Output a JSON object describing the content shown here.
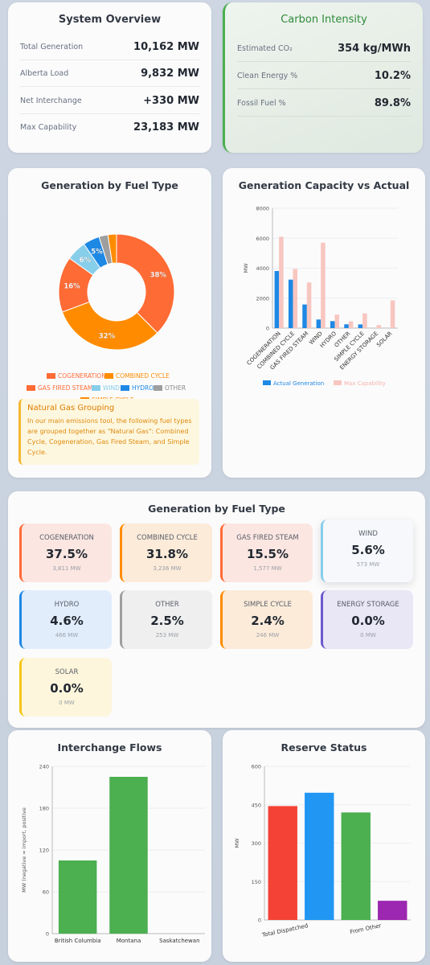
{
  "system_overview": {
    "title": "System Overview",
    "rows": [
      {
        "label": "Total Generation",
        "value": "10,162 MW"
      },
      {
        "label": "Alberta Load",
        "value": "9,832 MW"
      },
      {
        "label": "Net Interchange",
        "value": "+330 MW"
      },
      {
        "label": "Max Capability",
        "value": "23,183 MW"
      }
    ]
  },
  "carbon": {
    "title": "Carbon Intensity",
    "title_color": "#2e8b3a",
    "rows": [
      {
        "label": "Estimated CO₂",
        "value": "354 kg/MWh"
      },
      {
        "label": "Clean Energy %",
        "value": "10.2%"
      },
      {
        "label": "Fossil Fuel %",
        "value": "89.8%"
      }
    ]
  },
  "pie_chart": {
    "title": "Generation by Fuel Type",
    "legend": [
      {
        "label": "COGENERATION",
        "color": "#ff6b35"
      },
      {
        "label": "COMBINED CYCLE",
        "color": "#ff8c00"
      },
      {
        "label": "GAS FIRED STEAM",
        "color": "#ff6b35"
      },
      {
        "label": "WIND",
        "color": "#87ceeb"
      },
      {
        "label": "HYDRO",
        "color": "#1e88e5"
      },
      {
        "label": "OTHER",
        "color": "#9e9e9e"
      },
      {
        "label": "SIMPLE CYCLE",
        "color": "#ff8c00"
      }
    ],
    "natural_gas": {
      "title": "Natural Gas Grouping",
      "text": "In our main emissions tool, the following fuel types are grouped together as \"Natural Gas\": Combined Cycle, Cogeneration, Gas Fired Steam, and Simple Cycle."
    }
  },
  "capacity_chart": {
    "title": "Generation Capacity vs Actual"
  },
  "fuel_tiles": {
    "title": "Generation by Fuel Type",
    "tiles": [
      {
        "name": "COGENERATION",
        "pct": "37.5%",
        "mw": "3,811 MW",
        "bg": "#fbe6e1",
        "border": "#ff6b35"
      },
      {
        "name": "COMBINED CYCLE",
        "pct": "31.8%",
        "mw": "3,236 MW",
        "bg": "#fcebd9",
        "border": "#ff8c00"
      },
      {
        "name": "GAS FIRED STEAM",
        "pct": "15.5%",
        "mw": "1,577 MW",
        "bg": "#fbe6e1",
        "border": "#ff6b35"
      },
      {
        "name": "WIND",
        "pct": "5.6%",
        "mw": "573 MW",
        "bg": "#f6f8fb",
        "border": "#87ceeb"
      },
      {
        "name": "HYDRO",
        "pct": "4.6%",
        "mw": "466 MW",
        "bg": "#e1edfb",
        "border": "#1e88e5"
      },
      {
        "name": "OTHER",
        "pct": "2.5%",
        "mw": "253 MW",
        "bg": "#efefef",
        "border": "#9e9e9e"
      },
      {
        "name": "SIMPLE CYCLE",
        "pct": "2.4%",
        "mw": "246 MW",
        "bg": "#fcebd9",
        "border": "#ff8c00"
      },
      {
        "name": "ENERGY STORAGE",
        "pct": "0.0%",
        "mw": "0 MW",
        "bg": "#e9e6f5",
        "border": "#6a5acd"
      },
      {
        "name": "SOLAR",
        "pct": "0.0%",
        "mw": "0 MW",
        "bg": "#fdf6dc",
        "border": "#f5c518"
      }
    ]
  },
  "interchange": {
    "title": "Interchange Flows"
  },
  "reserve": {
    "title": "Reserve Status"
  },
  "chart_data": [
    {
      "type": "pie",
      "title": "Generation by Fuel Type",
      "categories": [
        "COGENERATION",
        "COMBINED CYCLE",
        "GAS FIRED STEAM",
        "WIND",
        "HYDRO",
        "OTHER",
        "SIMPLE CYCLE"
      ],
      "values": [
        37.5,
        31.8,
        15.5,
        5.6,
        4.6,
        2.5,
        2.4
      ],
      "colors": [
        "#ff6b35",
        "#ff8c00",
        "#ff6b35",
        "#87ceeb",
        "#1e88e5",
        "#9e9e9e",
        "#ff8c00"
      ],
      "data_labels": [
        "38%",
        "32%",
        "16%",
        "6%",
        "5%",
        "",
        ""
      ],
      "donut": true,
      "legend": "bottom"
    },
    {
      "type": "bar",
      "title": "Generation Capacity vs Actual",
      "categories": [
        "COGENERATION",
        "COMBINED CYCLE",
        "GAS FIRED STEAM",
        "WIND",
        "HYDRO",
        "OTHER",
        "SIMPLE CYCLE",
        "ENERGY STORAGE",
        "SOLAR"
      ],
      "series": [
        {
          "name": "Actual Generation",
          "color": "#1e88e5",
          "values": [
            3811,
            3236,
            1577,
            573,
            466,
            253,
            246,
            0,
            0
          ]
        },
        {
          "name": "Max Capability",
          "color": "#f8c6c0",
          "values": [
            6100,
            3950,
            3050,
            5700,
            900,
            450,
            980,
            200,
            1850
          ]
        }
      ],
      "ylabel": "MW",
      "ylim": [
        0,
        8000
      ],
      "yticks": [
        0,
        2000,
        4000,
        6000,
        8000
      ],
      "grid": true,
      "legend": "bottom"
    },
    {
      "type": "bar",
      "title": "Interchange Flows",
      "categories": [
        "British Columbia",
        "Montana",
        "Saskatchewan"
      ],
      "values": [
        105,
        225,
        0
      ],
      "color": "#4caf50",
      "ylabel": "MW (negative = import, positive",
      "ylim": [
        0,
        240
      ],
      "yticks": [
        0,
        60,
        120,
        180,
        240
      ],
      "grid": true
    },
    {
      "type": "bar",
      "title": "Reserve Status",
      "categories": [
        "Total Dispatched",
        "",
        "From Other",
        ""
      ],
      "tick_labels": [
        "Total Dispatched",
        "From Other"
      ],
      "values": [
        445,
        497,
        420,
        75
      ],
      "colors": [
        "#f44336",
        "#2196f3",
        "#4caf50",
        "#9c27b0"
      ],
      "ylabel": "MW",
      "ylim": [
        0,
        600
      ],
      "yticks": [
        0,
        150,
        300,
        450,
        600
      ],
      "grid": true
    }
  ]
}
